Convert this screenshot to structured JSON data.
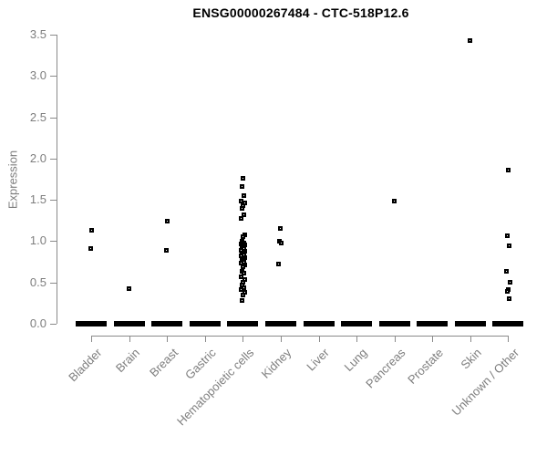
{
  "title": "ENSG00000267484 - CTC-518P12.6",
  "colors": {
    "point": "#000000",
    "axis_line": "#8a8a8a",
    "axis_text": "#7e7e7e",
    "title_text": "#000000",
    "background": "#ffffff"
  },
  "chart_data": {
    "type": "scatter",
    "subtype": "strip-plot",
    "title": "ENSG00000267484 - CTC-518P12.6",
    "xlabel": "",
    "ylabel": "Expression",
    "ylim": [
      0.0,
      3.5
    ],
    "y_ticks": [
      0.0,
      0.5,
      1.0,
      1.5,
      2.0,
      2.5,
      3.0,
      3.5
    ],
    "grid": false,
    "legend": false,
    "marker": "open-black-square",
    "categories": [
      "Bladder",
      "Brain",
      "Breast",
      "Gastric",
      "Hematopoietic cells",
      "Kidney",
      "Liver",
      "Lung",
      "Pancreas",
      "Prostate",
      "Skin",
      "Unknown / Other"
    ],
    "series": [
      {
        "category": "Bladder",
        "zero_cluster": true,
        "values": [
          1.13,
          0.91
        ]
      },
      {
        "category": "Brain",
        "zero_cluster": true,
        "values": [
          0.43
        ]
      },
      {
        "category": "Breast",
        "zero_cluster": true,
        "values": [
          1.24,
          0.89
        ]
      },
      {
        "category": "Gastric",
        "zero_cluster": true,
        "values": []
      },
      {
        "category": "Hematopoietic cells",
        "zero_cluster": true,
        "values": [
          1.76,
          1.66,
          1.55,
          1.49,
          1.46,
          1.43,
          1.4,
          1.32,
          1.28,
          1.08,
          1.05,
          1.0,
          0.98,
          0.97,
          0.95,
          0.94,
          0.92,
          0.91,
          0.89,
          0.88,
          0.86,
          0.85,
          0.83,
          0.82,
          0.8,
          0.79,
          0.77,
          0.75,
          0.73,
          0.71,
          0.69,
          0.64,
          0.61,
          0.57,
          0.54,
          0.5,
          0.47,
          0.44,
          0.41,
          0.38,
          0.35,
          0.28
        ]
      },
      {
        "category": "Kidney",
        "zero_cluster": true,
        "values": [
          1.15,
          1.0,
          0.98,
          0.72
        ]
      },
      {
        "category": "Liver",
        "zero_cluster": true,
        "values": []
      },
      {
        "category": "Lung",
        "zero_cluster": true,
        "values": []
      },
      {
        "category": "Pancreas",
        "zero_cluster": true,
        "values": [
          1.48
        ]
      },
      {
        "category": "Prostate",
        "zero_cluster": true,
        "values": []
      },
      {
        "category": "Skin",
        "zero_cluster": true,
        "values": [
          3.43
        ]
      },
      {
        "category": "Unknown / Other",
        "zero_cluster": true,
        "values": [
          1.86,
          1.07,
          0.94,
          0.63,
          0.5,
          0.41,
          0.39,
          0.3
        ]
      }
    ],
    "annotations": "each category shows a dense horizontal bar of overlapping points at expression 0"
  }
}
